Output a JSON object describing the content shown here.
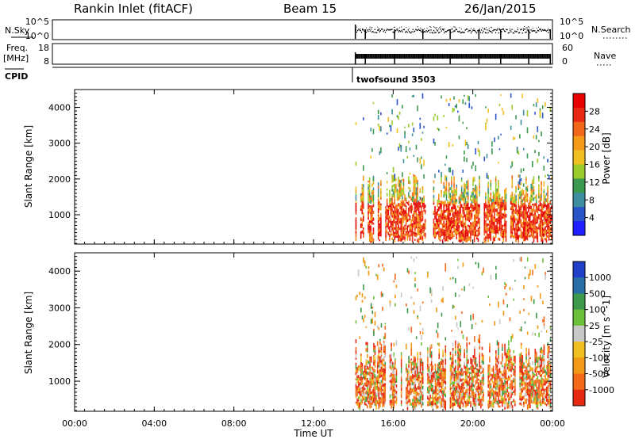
{
  "header": {
    "station": "Rankin Inlet (fitACF)",
    "beam": "Beam 15",
    "date": "26/Jan/2015"
  },
  "strips": {
    "nsky": {
      "label": "N.Sky",
      "ticks": [
        "10^5",
        "10^0"
      ],
      "right_label": "N.Search",
      "right_ticks": [
        "10^5",
        "10^0"
      ]
    },
    "freq": {
      "label_line1": "Freq.",
      "label_line2": "[MHz]",
      "ticks": [
        "18",
        "8"
      ],
      "right_label": "Nave",
      "right_ticks": [
        "60",
        "0"
      ]
    },
    "cpid": {
      "label": "CPID",
      "value": "twofsound 3503"
    }
  },
  "chart_data": [
    {
      "type": "heatmap",
      "title": "",
      "quantity": "Power",
      "colorbar_label": "Power [dB]",
      "ylabel": "Slant Range [km]",
      "ylim": [
        180,
        4500
      ],
      "y_ticks": [
        1000,
        2000,
        3000,
        4000
      ],
      "xlim_hours": [
        0,
        24
      ],
      "data_start_hour": 14.1,
      "colorbar_ticks": [
        "4",
        "8",
        "12",
        "16",
        "20",
        "24",
        "28"
      ],
      "colorbar_colors": [
        "#1f1fff",
        "#2a55c8",
        "#3f8ea0",
        "#3c9a50",
        "#9acc2c",
        "#f0c020",
        "#f49a18",
        "#f2661a",
        "#e82a14",
        "#e60000"
      ],
      "grid": false
    },
    {
      "type": "heatmap",
      "title": "",
      "quantity": "Velocity",
      "colorbar_label": "Velocity [m s^-1]",
      "ylabel": "Slant Range [km]",
      "ylim": [
        180,
        4500
      ],
      "y_ticks": [
        1000,
        2000,
        3000,
        4000
      ],
      "xlim_hours": [
        0,
        24
      ],
      "data_start_hour": 14.1,
      "colorbar_ticks": [
        "1000",
        "500",
        "100",
        "25",
        "-25",
        "-100",
        "-500",
        "-1000"
      ],
      "colorbar_colors": [
        "#1f3fc8",
        "#2a6ea8",
        "#3d9a4c",
        "#6cc03a",
        "#c8c8c8",
        "#f0c020",
        "#f29a18",
        "#f26a1a",
        "#e62a12"
      ],
      "grid": false
    }
  ],
  "xaxis": {
    "label": "Time UT",
    "ticks": [
      "00:00",
      "04:00",
      "08:00",
      "12:00",
      "16:00",
      "20:00",
      "00:00"
    ]
  }
}
